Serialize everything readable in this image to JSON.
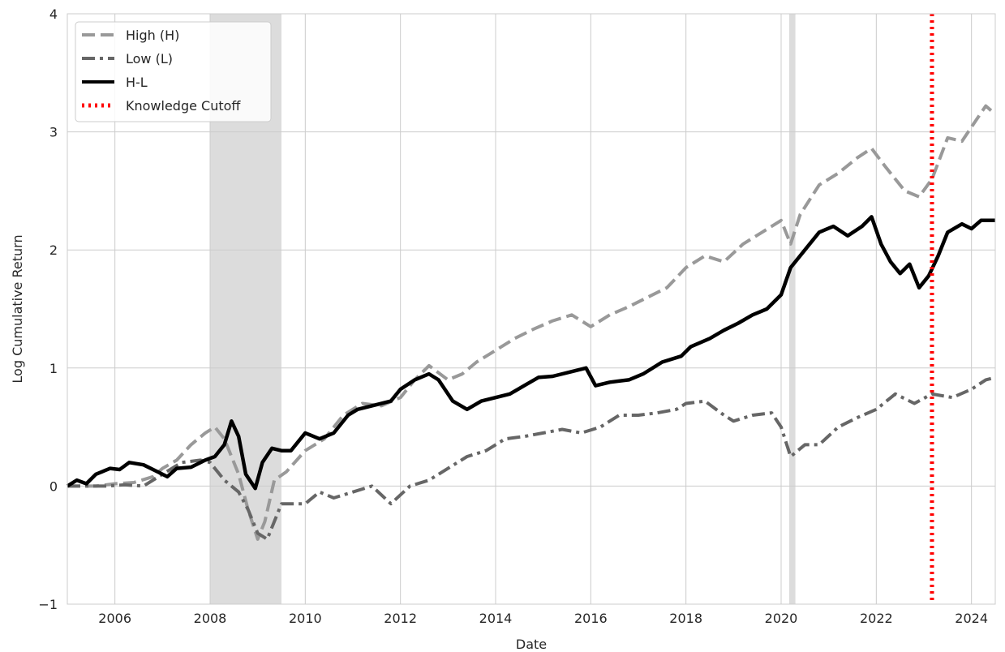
{
  "chart_data": {
    "type": "line",
    "title": "",
    "xlabel": "Date",
    "ylabel": "Log Cumulative Return",
    "xlim": [
      2005.0,
      2024.5
    ],
    "ylim": [
      -1,
      4
    ],
    "x_ticks": [
      2006,
      2008,
      2010,
      2012,
      2014,
      2016,
      2018,
      2020,
      2022,
      2024
    ],
    "x_tick_labels": [
      "2006",
      "2008",
      "2010",
      "2012",
      "2014",
      "2016",
      "2018",
      "2020",
      "2022",
      "2024"
    ],
    "y_ticks": [
      -1,
      0,
      1,
      2,
      3,
      4
    ],
    "y_tick_labels": [
      "−1",
      "0",
      "1",
      "2",
      "3",
      "4"
    ],
    "grid": true,
    "legend_position": "upper-left",
    "shaded_periods": [
      {
        "start": 2008.0,
        "end": 2009.5,
        "color": "#dcdcdc"
      },
      {
        "start": 2020.17,
        "end": 2020.3,
        "color": "#dcdcdc"
      }
    ],
    "vertical_lines": [
      {
        "x": 2023.17,
        "name": "Knowledge Cutoff",
        "color": "#ff0000",
        "style": "dotted"
      }
    ],
    "series": [
      {
        "name": "High (H)",
        "color": "#999999",
        "style": "dashed",
        "points": [
          [
            2005.0,
            0.0
          ],
          [
            2005.3,
            0.0
          ],
          [
            2005.6,
            0.0
          ],
          [
            2006.0,
            0.02
          ],
          [
            2006.4,
            0.03
          ],
          [
            2006.8,
            0.08
          ],
          [
            2007.0,
            0.15
          ],
          [
            2007.3,
            0.22
          ],
          [
            2007.6,
            0.35
          ],
          [
            2007.9,
            0.45
          ],
          [
            2008.1,
            0.5
          ],
          [
            2008.3,
            0.4
          ],
          [
            2008.6,
            0.1
          ],
          [
            2008.8,
            -0.2
          ],
          [
            2009.0,
            -0.45
          ],
          [
            2009.15,
            -0.3
          ],
          [
            2009.35,
            0.05
          ],
          [
            2009.6,
            0.12
          ],
          [
            2010.0,
            0.3
          ],
          [
            2010.4,
            0.4
          ],
          [
            2010.8,
            0.6
          ],
          [
            2011.2,
            0.7
          ],
          [
            2011.6,
            0.68
          ],
          [
            2012.0,
            0.75
          ],
          [
            2012.3,
            0.9
          ],
          [
            2012.6,
            1.02
          ],
          [
            2013.0,
            0.9
          ],
          [
            2013.3,
            0.95
          ],
          [
            2013.6,
            1.05
          ],
          [
            2014.0,
            1.15
          ],
          [
            2014.4,
            1.25
          ],
          [
            2014.8,
            1.33
          ],
          [
            2015.2,
            1.4
          ],
          [
            2015.6,
            1.45
          ],
          [
            2016.0,
            1.35
          ],
          [
            2016.4,
            1.45
          ],
          [
            2016.8,
            1.52
          ],
          [
            2017.2,
            1.6
          ],
          [
            2017.6,
            1.68
          ],
          [
            2018.0,
            1.85
          ],
          [
            2018.4,
            1.95
          ],
          [
            2018.8,
            1.9
          ],
          [
            2019.2,
            2.05
          ],
          [
            2019.6,
            2.15
          ],
          [
            2020.0,
            2.25
          ],
          [
            2020.2,
            2.05
          ],
          [
            2020.4,
            2.3
          ],
          [
            2020.8,
            2.55
          ],
          [
            2021.2,
            2.65
          ],
          [
            2021.6,
            2.78
          ],
          [
            2021.9,
            2.86
          ],
          [
            2022.2,
            2.7
          ],
          [
            2022.6,
            2.5
          ],
          [
            2022.9,
            2.45
          ],
          [
            2023.17,
            2.6
          ],
          [
            2023.5,
            2.95
          ],
          [
            2023.8,
            2.92
          ],
          [
            2024.1,
            3.1
          ],
          [
            2024.3,
            3.22
          ],
          [
            2024.5,
            3.15
          ]
        ]
      },
      {
        "name": "Low (L)",
        "color": "#666666",
        "style": "dashdot",
        "points": [
          [
            2005.0,
            0.0
          ],
          [
            2005.4,
            0.0
          ],
          [
            2005.8,
            0.0
          ],
          [
            2006.2,
            0.01
          ],
          [
            2006.6,
            0.0
          ],
          [
            2007.0,
            0.1
          ],
          [
            2007.4,
            0.2
          ],
          [
            2007.8,
            0.22
          ],
          [
            2008.0,
            0.2
          ],
          [
            2008.3,
            0.05
          ],
          [
            2008.6,
            -0.05
          ],
          [
            2008.8,
            -0.2
          ],
          [
            2009.0,
            -0.4
          ],
          [
            2009.2,
            -0.45
          ],
          [
            2009.5,
            -0.15
          ],
          [
            2010.0,
            -0.15
          ],
          [
            2010.3,
            -0.05
          ],
          [
            2010.6,
            -0.1
          ],
          [
            2011.0,
            -0.05
          ],
          [
            2011.4,
            0.0
          ],
          [
            2011.8,
            -0.15
          ],
          [
            2012.2,
            0.0
          ],
          [
            2012.6,
            0.05
          ],
          [
            2013.0,
            0.15
          ],
          [
            2013.4,
            0.25
          ],
          [
            2013.8,
            0.3
          ],
          [
            2014.2,
            0.4
          ],
          [
            2014.6,
            0.42
          ],
          [
            2015.0,
            0.45
          ],
          [
            2015.4,
            0.48
          ],
          [
            2015.8,
            0.45
          ],
          [
            2016.2,
            0.5
          ],
          [
            2016.6,
            0.6
          ],
          [
            2017.0,
            0.6
          ],
          [
            2017.4,
            0.62
          ],
          [
            2017.8,
            0.65
          ],
          [
            2018.0,
            0.7
          ],
          [
            2018.4,
            0.72
          ],
          [
            2018.8,
            0.6
          ],
          [
            2019.0,
            0.55
          ],
          [
            2019.4,
            0.6
          ],
          [
            2019.8,
            0.62
          ],
          [
            2020.0,
            0.5
          ],
          [
            2020.2,
            0.25
          ],
          [
            2020.5,
            0.35
          ],
          [
            2020.8,
            0.35
          ],
          [
            2021.2,
            0.5
          ],
          [
            2021.6,
            0.58
          ],
          [
            2022.0,
            0.65
          ],
          [
            2022.4,
            0.78
          ],
          [
            2022.8,
            0.7
          ],
          [
            2023.17,
            0.78
          ],
          [
            2023.6,
            0.75
          ],
          [
            2024.0,
            0.82
          ],
          [
            2024.3,
            0.9
          ],
          [
            2024.5,
            0.92
          ]
        ]
      },
      {
        "name": "H-L",
        "color": "#000000",
        "style": "solid",
        "points": [
          [
            2005.0,
            0.0
          ],
          [
            2005.2,
            0.05
          ],
          [
            2005.4,
            0.02
          ],
          [
            2005.6,
            0.1
          ],
          [
            2005.9,
            0.15
          ],
          [
            2006.1,
            0.14
          ],
          [
            2006.3,
            0.2
          ],
          [
            2006.6,
            0.18
          ],
          [
            2006.9,
            0.12
          ],
          [
            2007.1,
            0.08
          ],
          [
            2007.3,
            0.15
          ],
          [
            2007.6,
            0.16
          ],
          [
            2007.9,
            0.22
          ],
          [
            2008.1,
            0.25
          ],
          [
            2008.3,
            0.35
          ],
          [
            2008.45,
            0.55
          ],
          [
            2008.6,
            0.42
          ],
          [
            2008.75,
            0.1
          ],
          [
            2008.95,
            -0.02
          ],
          [
            2009.1,
            0.2
          ],
          [
            2009.3,
            0.32
          ],
          [
            2009.5,
            0.3
          ],
          [
            2009.7,
            0.3
          ],
          [
            2010.0,
            0.45
          ],
          [
            2010.3,
            0.4
          ],
          [
            2010.6,
            0.45
          ],
          [
            2010.9,
            0.6
          ],
          [
            2011.1,
            0.65
          ],
          [
            2011.4,
            0.68
          ],
          [
            2011.8,
            0.72
          ],
          [
            2012.0,
            0.82
          ],
          [
            2012.3,
            0.9
          ],
          [
            2012.6,
            0.95
          ],
          [
            2012.8,
            0.9
          ],
          [
            2013.1,
            0.72
          ],
          [
            2013.4,
            0.65
          ],
          [
            2013.7,
            0.72
          ],
          [
            2014.0,
            0.75
          ],
          [
            2014.3,
            0.78
          ],
          [
            2014.6,
            0.85
          ],
          [
            2014.9,
            0.92
          ],
          [
            2015.2,
            0.93
          ],
          [
            2015.6,
            0.97
          ],
          [
            2015.9,
            1.0
          ],
          [
            2016.1,
            0.85
          ],
          [
            2016.4,
            0.88
          ],
          [
            2016.8,
            0.9
          ],
          [
            2017.1,
            0.95
          ],
          [
            2017.5,
            1.05
          ],
          [
            2017.9,
            1.1
          ],
          [
            2018.1,
            1.18
          ],
          [
            2018.5,
            1.25
          ],
          [
            2018.8,
            1.32
          ],
          [
            2019.1,
            1.38
          ],
          [
            2019.4,
            1.45
          ],
          [
            2019.7,
            1.5
          ],
          [
            2020.0,
            1.62
          ],
          [
            2020.2,
            1.85
          ],
          [
            2020.5,
            2.0
          ],
          [
            2020.8,
            2.15
          ],
          [
            2021.1,
            2.2
          ],
          [
            2021.4,
            2.12
          ],
          [
            2021.7,
            2.2
          ],
          [
            2021.9,
            2.28
          ],
          [
            2022.1,
            2.05
          ],
          [
            2022.3,
            1.9
          ],
          [
            2022.5,
            1.8
          ],
          [
            2022.7,
            1.88
          ],
          [
            2022.9,
            1.68
          ],
          [
            2023.1,
            1.78
          ],
          [
            2023.3,
            1.95
          ],
          [
            2023.5,
            2.15
          ],
          [
            2023.8,
            2.22
          ],
          [
            2024.0,
            2.18
          ],
          [
            2024.2,
            2.25
          ],
          [
            2024.5,
            2.25
          ]
        ]
      },
      {
        "name": "Knowledge Cutoff",
        "color": "#ff0000",
        "style": "dotted",
        "points": []
      }
    ]
  }
}
